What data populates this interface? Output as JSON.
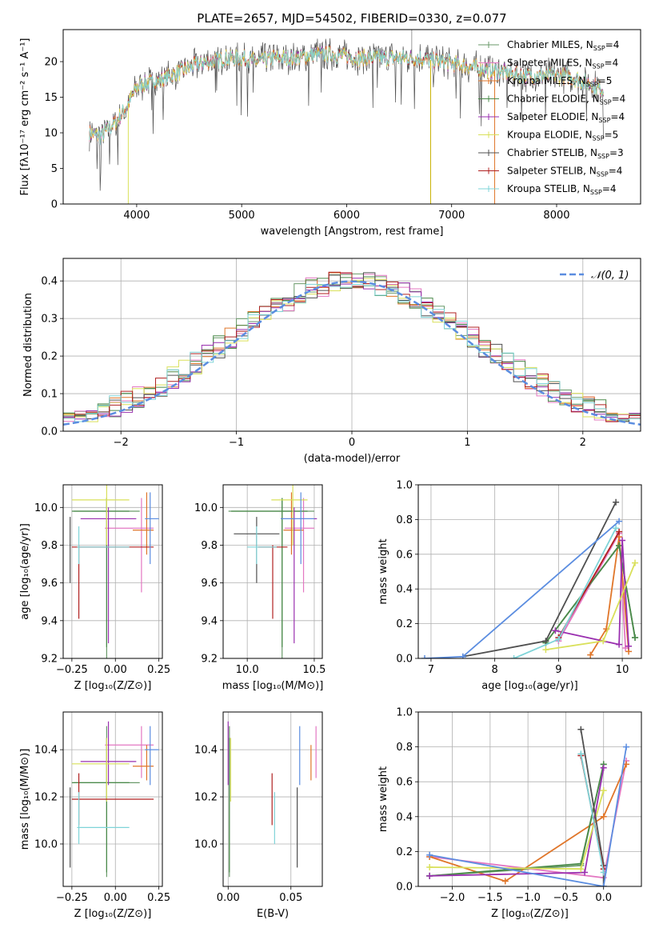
{
  "chart_data": [
    {
      "id": "spectrum",
      "type": "line",
      "title": "PLATE=2657, MJD=54502, FIBERID=0330, z=0.077",
      "xlabel": "wavelength [Angstrom, rest frame]",
      "ylabel": "Flux [fλ10⁻¹⁷ erg cm⁻² s⁻¹ A⁻¹]",
      "xlim": [
        3300,
        8800
      ],
      "ylim": [
        0,
        24.5
      ],
      "xticks": [
        4000,
        5000,
        6000,
        7000,
        8000
      ],
      "yticks": [
        0,
        5,
        10,
        15,
        20
      ],
      "grid": false,
      "legend_position": "top-right",
      "legend": [
        "Chabrier MILES, N_SSP=4",
        "Salpeter MILES, N_SSP=4",
        "Kroupa MILES, N_SSP=5",
        "Chabrier ELODIE, N_SSP=4",
        "Salpeter ELODIE, N_SSP=4",
        "Kroupa ELODIE, N_SSP=5",
        "Chabrier STELIB, N_SSP=3",
        "Salpeter STELIB, N_SSP=4",
        "Kroupa STELIB, N_SSP=4"
      ],
      "continuum": {
        "x": [
          3550,
          3650,
          3800,
          3900,
          4000,
          4100,
          4250,
          4400,
          4550,
          4700,
          4850,
          5000,
          5150,
          5300,
          5500,
          5700,
          5900,
          6100,
          6300,
          6500,
          6700,
          6900,
          7100,
          7300,
          7500,
          7700,
          7900,
          8100,
          8300,
          8450
        ],
        "y": [
          10,
          9.5,
          11.5,
          13.5,
          16.5,
          17,
          17.5,
          18.5,
          19.5,
          20,
          20.5,
          20.5,
          20,
          20.5,
          20.5,
          21,
          21,
          20.5,
          20.5,
          20.5,
          20.5,
          20,
          19.5,
          19,
          18.5,
          18,
          18,
          18,
          17,
          16
        ]
      }
    },
    {
      "id": "residuals",
      "type": "line",
      "xlabel": "(data-model)/error",
      "ylabel": "Normed distribution",
      "xlim": [
        -2.5,
        2.5
      ],
      "ylim": [
        0,
        0.46
      ],
      "xticks": [
        -2,
        -1,
        0,
        1,
        2
      ],
      "yticks": [
        0.0,
        0.1,
        0.2,
        0.3,
        0.4
      ],
      "grid": true,
      "legend_position": "top-right",
      "legend": [
        "𝒩(0, 1)"
      ]
    },
    {
      "id": "age_vs_Z",
      "type": "scatter",
      "xlabel": "Z [log₁₀(Z/Z⊙)]",
      "ylabel": "age [log₁₀(age/yr)]",
      "xlim": [
        -0.3,
        0.27
      ],
      "ylim": [
        9.2,
        10.12
      ],
      "xticks": [
        -0.25,
        0.0,
        0.25
      ],
      "yticks": [
        9.2,
        9.4,
        9.6,
        9.8,
        10.0
      ],
      "grid": true
    },
    {
      "id": "age_vs_mass",
      "type": "scatter",
      "xlabel": "mass [log₁₀(M/M⊙)]",
      "ylabel": "",
      "xlim": [
        9.82,
        10.56
      ],
      "ylim": [
        9.2,
        10.12
      ],
      "xticks": [
        10.0,
        10.5
      ],
      "yticks": [
        9.2,
        9.4,
        9.6,
        9.8,
        10.0
      ],
      "grid": true
    },
    {
      "id": "weight_vs_age",
      "type": "line",
      "xlabel": "age [log₁₀(age/yr)]",
      "ylabel": "mass weight",
      "xlim": [
        6.8,
        10.3
      ],
      "ylim": [
        0,
        1
      ],
      "xticks": [
        7,
        8,
        9,
        10
      ],
      "yticks": [
        0.0,
        0.2,
        0.4,
        0.6,
        0.8,
        1.0
      ],
      "grid": true
    },
    {
      "id": "mass_vs_Z",
      "type": "scatter",
      "xlabel": "Z [log₁₀(Z/Z⊙)]",
      "ylabel": "mass [log₁₀(M/M⊙)]",
      "xlim": [
        -0.3,
        0.27
      ],
      "ylim": [
        9.82,
        10.56
      ],
      "xticks": [
        -0.25,
        0.0,
        0.25
      ],
      "yticks": [
        10.0,
        10.2,
        10.4
      ],
      "grid": true
    },
    {
      "id": "mass_vs_ebv",
      "type": "scatter",
      "xlabel": "E(B-V)",
      "ylabel": "",
      "xlim": [
        -0.004,
        0.075
      ],
      "ylim": [
        9.82,
        10.56
      ],
      "xticks": [
        0.0,
        0.05
      ],
      "yticks": [
        10.0,
        10.2,
        10.4
      ],
      "grid": true
    },
    {
      "id": "weight_vs_Z",
      "type": "line",
      "xlabel": "Z [log₁₀(Z/Z⊙)]",
      "ylabel": "mass weight",
      "xlim": [
        -2.45,
        0.5
      ],
      "ylim": [
        0,
        1
      ],
      "xticks": [
        -2.0,
        -1.5,
        -1.0,
        -0.5,
        0.0
      ],
      "yticks": [
        0.0,
        0.2,
        0.4,
        0.6,
        0.8,
        1.0
      ],
      "grid": true
    }
  ],
  "models": [
    {
      "name": "Chabrier MILES",
      "color": "#6a9a6a",
      "Z": [
        -0.24,
        0.14
      ],
      "age": [
        9.2,
        10.05
      ],
      "mass": [
        9.86,
        10.5
      ],
      "ebv": 0.001,
      "mass_c": 10.26,
      "Z_c": -0.05,
      "age_c": 9.98,
      "w_age": [
        [
          8.8,
          0.09
        ],
        [
          9.95,
          0.65
        ],
        [
          10.2,
          0.12
        ]
      ],
      "w_Z": [
        [
          -2.3,
          0.06
        ],
        [
          -0.3,
          0.12
        ],
        [
          0.0,
          0.7
        ]
      ]
    },
    {
      "name": "Salpeter MILES",
      "color": "#e377c2",
      "Z": [
        -0.06,
        0.22
      ],
      "age": [
        9.55,
        10.05
      ],
      "mass": [
        10.28,
        10.5
      ],
      "ebv": 0.07,
      "mass_c": 10.42,
      "Z_c": 0.15,
      "age_c": 9.89,
      "w_age": [
        [
          9.0,
          0.1
        ],
        [
          9.95,
          0.72
        ],
        [
          10.05,
          0.06
        ]
      ],
      "w_Z": [
        [
          -2.3,
          0.17
        ],
        [
          0.0,
          0.05
        ],
        [
          0.3,
          0.72
        ]
      ]
    },
    {
      "name": "Kroupa MILES",
      "color": "#e0762a",
      "Z": [
        0.1,
        0.22
      ],
      "age": [
        9.75,
        10.08
      ],
      "mass": [
        10.27,
        10.42
      ],
      "ebv": 0.066,
      "mass_c": 10.33,
      "Z_c": 0.18,
      "age_c": 9.88,
      "w_age": [
        [
          9.5,
          0.02
        ],
        [
          9.75,
          0.17
        ],
        [
          9.95,
          0.7
        ],
        [
          10.1,
          0.04
        ]
      ],
      "w_Z": [
        [
          -2.3,
          0.17
        ],
        [
          -1.3,
          0.03
        ],
        [
          0.0,
          0.4
        ],
        [
          0.3,
          0.7
        ]
      ]
    },
    {
      "name": "Chabrier ELODIE",
      "color": "#4a8a4a",
      "Z": [
        -0.25,
        0.08
      ],
      "age": [
        9.26,
        10.05
      ],
      "mass": [
        9.88,
        10.45
      ],
      "ebv": 0.001,
      "mass_c": 10.26,
      "Z_c": -0.05,
      "age_c": 9.98,
      "w_age": [
        [
          8.8,
          0.09
        ],
        [
          9.95,
          0.65
        ],
        [
          10.2,
          0.12
        ]
      ],
      "w_Z": [
        [
          -2.3,
          0.06
        ],
        [
          -0.3,
          0.13
        ],
        [
          0.0,
          0.7
        ]
      ]
    },
    {
      "name": "Salpeter ELODIE",
      "color": "#9a30b0",
      "Z": [
        -0.2,
        0.12
      ],
      "age": [
        9.28,
        10.0
      ],
      "mass": [
        10.25,
        10.52
      ],
      "ebv": 0.0,
      "mass_c": 10.35,
      "Z_c": -0.04,
      "age_c": 9.94,
      "w_age": [
        [
          8.95,
          0.16
        ],
        [
          9.95,
          0.08
        ],
        [
          10.0,
          0.68
        ],
        [
          10.1,
          0.07
        ]
      ],
      "w_Z": [
        [
          -2.3,
          0.06
        ],
        [
          -0.25,
          0.08
        ],
        [
          0.0,
          0.68
        ]
      ]
    },
    {
      "name": "Kroupa ELODIE",
      "color": "#d9e05a",
      "Z": [
        -0.25,
        0.08
      ],
      "age": [
        9.8,
        10.12
      ],
      "mass": [
        10.18,
        10.45
      ],
      "ebv": 0.002,
      "mass_c": 10.34,
      "Z_c": -0.05,
      "age_c": 10.04,
      "w_age": [
        [
          8.8,
          0.05
        ],
        [
          9.7,
          0.1
        ],
        [
          10.2,
          0.55
        ]
      ],
      "w_Z": [
        [
          -2.3,
          0.11
        ],
        [
          -0.3,
          0.1
        ],
        [
          0.0,
          0.55
        ]
      ]
    },
    {
      "name": "Chabrier STELIB",
      "color": "#505050",
      "Z": [
        -0.26,
        -0.26
      ],
      "age": [
        9.6,
        9.95
      ],
      "mass": [
        9.9,
        10.24
      ],
      "ebv": 0.055,
      "mass_c": 10.07,
      "Z_c": -0.26,
      "age_c": 9.86,
      "w_age": [
        [
          7.5,
          0.01
        ],
        [
          8.8,
          0.1
        ],
        [
          9.9,
          0.9
        ]
      ],
      "w_Z": [
        [
          -0.3,
          0.9
        ],
        [
          0.0,
          0.12
        ],
        [
          0.0,
          0.0
        ]
      ]
    },
    {
      "name": "Salpeter STELIB",
      "color": "#b02020",
      "Z": [
        -0.25,
        0.22
      ],
      "age": [
        9.41,
        9.8
      ],
      "mass": [
        10.08,
        10.3
      ],
      "ebv": 0.035,
      "mass_c": 10.19,
      "Z_c": -0.21,
      "age_c": 9.79,
      "w_age": [
        [
          9.0,
          0.12
        ],
        [
          9.95,
          0.73
        ]
      ],
      "w_Z": [
        [
          -0.3,
          0.75
        ],
        [
          0.0,
          0.1
        ]
      ]
    },
    {
      "name": "Kroupa STELIB",
      "color": "#7fd4d8",
      "Z": [
        -0.22,
        0.08
      ],
      "age": [
        9.7,
        9.9
      ],
      "mass": [
        10.0,
        10.22
      ],
      "ebv": 0.037,
      "mass_c": 10.07,
      "Z_c": -0.21,
      "age_c": 9.79,
      "w_age": [
        [
          8.3,
          0.0
        ],
        [
          9.0,
          0.11
        ],
        [
          9.9,
          0.75
        ]
      ],
      "w_Z": [
        [
          -0.3,
          0.76
        ],
        [
          0.0,
          0.08
        ]
      ]
    }
  ],
  "extra_series": [
    {
      "name": "blue",
      "color": "#5b8de0",
      "w_age": [
        [
          6.9,
          0.0
        ],
        [
          7.5,
          0.01
        ],
        [
          9.95,
          0.79
        ]
      ],
      "w_Z": [
        [
          -2.3,
          0.18
        ],
        [
          0.0,
          0.0
        ],
        [
          0.3,
          0.8
        ]
      ],
      "Z": [
        0.17,
        0.25
      ],
      "age": [
        9.7,
        10.08
      ],
      "mass": [
        10.25,
        10.5
      ],
      "ebv": 0.057,
      "mass_c": 10.4,
      "Z_c": 0.2,
      "age_c": 9.94
    }
  ],
  "gaussian_label": "𝒩(0, 1)"
}
